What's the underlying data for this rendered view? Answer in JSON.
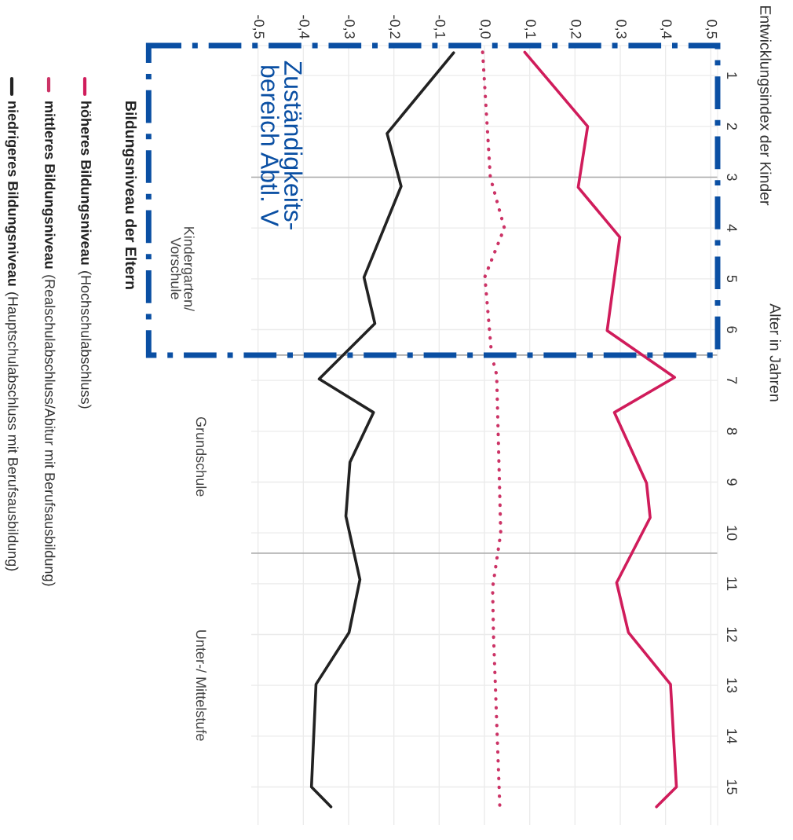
{
  "chart_data": {
    "type": "line",
    "orientation": "horizontal",
    "ylabel": "Alter in Jahren",
    "legend_title": "Bildungsniveau der Eltern",
    "legend": "left",
    "xlim": [
      -0.515,
      0.515
    ],
    "xticks": [
      {
        "value": -0.5,
        "label": "-0,5"
      },
      {
        "value": -0.4,
        "label": "-0,4"
      },
      {
        "value": -0.3,
        "label": "-0,3"
      },
      {
        "value": -0.2,
        "label": "-0,2"
      },
      {
        "value": -0.1,
        "label": "-0,1"
      },
      {
        "value": 0,
        "label": "0,0"
      },
      {
        "value": 0.1,
        "label": "0,1"
      },
      {
        "value": 0.2,
        "label": "0,2"
      },
      {
        "value": 0.3,
        "label": "0,3"
      },
      {
        "value": 0.4,
        "label": "0,4"
      },
      {
        "value": 0.5,
        "label": "0,5"
      }
    ],
    "ylim": [
      15.75,
      0.41
    ],
    "yticks": [
      1,
      2,
      3,
      4,
      5,
      6,
      7,
      8,
      9,
      10,
      11,
      12,
      13,
      14,
      15
    ],
    "grid": true,
    "series": [
      {
        "name": "höheres Bildungsniveau (Hochschulabschluss)",
        "color": "#d01c5b",
        "line_style": "solid",
        "x": [
          0.54,
          2.0,
          3.2,
          4.18,
          6.02,
          6.94,
          7.63,
          9.02,
          9.7,
          10.98,
          11.96,
          12.98,
          15.0,
          15.39
        ],
        "values": [
          0.089,
          0.228,
          0.207,
          0.299,
          0.271,
          0.42,
          0.287,
          0.358,
          0.366,
          0.292,
          0.318,
          0.411,
          0.424,
          0.38
        ]
      },
      {
        "name": "mittleres Bildungsniveau (Realschulabschluss/Abitur mit Berufsausbildung)",
        "color": "#cc3366",
        "line_style": "dotted",
        "x": [
          0.54,
          3.0,
          4.0,
          4.96,
          6.51,
          6.89,
          10.0,
          11.08,
          12.0,
          15.4
        ],
        "values": [
          -0.004,
          0.013,
          0.044,
          0.001,
          0.016,
          0.027,
          0.036,
          0.018,
          0.02,
          0.034
        ]
      },
      {
        "name": "niedrigeres Bildungsniveau (Hauptschulabschluss mit Berufsausbildung)",
        "color": "#222222",
        "line_style": "solid",
        "x": [
          0.55,
          2.14,
          3.18,
          4.97,
          5.88,
          6.97,
          7.63,
          8.61,
          9.67,
          10.92,
          11.96,
          12.98,
          15.0,
          15.39
        ],
        "values": [
          -0.068,
          -0.215,
          -0.184,
          -0.266,
          -0.242,
          -0.365,
          -0.245,
          -0.297,
          -0.306,
          -0.275,
          -0.299,
          -0.372,
          -0.382,
          -0.339
        ]
      }
    ],
    "ref_lines": [
      {
        "axis": "y",
        "value": 3
      },
      {
        "axis": "y",
        "value": 6.5
      },
      {
        "axis": "y",
        "value": 10.4
      }
    ],
    "annotations": [
      "Kindergarten/\nVorschule",
      "Grundschule",
      "Unter-/ Mittelstufe",
      "Zuständigkeits-\nbereich Abtl. V",
      "Entwicklungsindex der Kinder"
    ]
  }
}
